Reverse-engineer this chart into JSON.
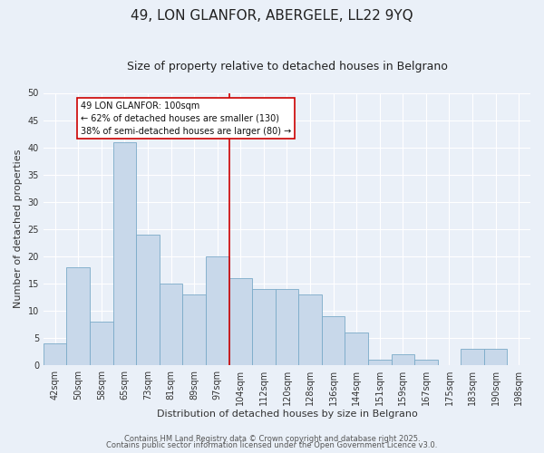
{
  "title": "49, LON GLANFOR, ABERGELE, LL22 9YQ",
  "subtitle": "Size of property relative to detached houses in Belgrano",
  "xlabel": "Distribution of detached houses by size in Belgrano",
  "ylabel": "Number of detached properties",
  "categories": [
    "42sqm",
    "50sqm",
    "58sqm",
    "65sqm",
    "73sqm",
    "81sqm",
    "89sqm",
    "97sqm",
    "104sqm",
    "112sqm",
    "120sqm",
    "128sqm",
    "136sqm",
    "144sqm",
    "151sqm",
    "159sqm",
    "167sqm",
    "175sqm",
    "183sqm",
    "190sqm",
    "198sqm"
  ],
  "values": [
    4,
    18,
    8,
    41,
    24,
    15,
    13,
    20,
    16,
    14,
    14,
    13,
    9,
    6,
    1,
    2,
    1,
    0,
    3,
    3,
    0
  ],
  "bar_color": "#c8d8ea",
  "bar_edge_color": "#7aaac8",
  "bar_width": 1.0,
  "ylim": [
    0,
    50
  ],
  "yticks": [
    0,
    5,
    10,
    15,
    20,
    25,
    30,
    35,
    40,
    45,
    50
  ],
  "vline_color": "#cc0000",
  "vline_x": 7.5,
  "annotation_text": "49 LON GLANFOR: 100sqm\n← 62% of detached houses are smaller (130)\n38% of semi-detached houses are larger (80) →",
  "annotation_box_color": "#ffffff",
  "annotation_box_edge": "#cc0000",
  "footer1": "Contains HM Land Registry data © Crown copyright and database right 2025.",
  "footer2": "Contains public sector information licensed under the Open Government Licence v3.0.",
  "background_color": "#eaf0f8",
  "grid_color": "#ffffff",
  "title_fontsize": 11,
  "subtitle_fontsize": 9,
  "axis_label_fontsize": 8,
  "tick_fontsize": 7,
  "footer_fontsize": 6,
  "annotation_fontsize": 7
}
